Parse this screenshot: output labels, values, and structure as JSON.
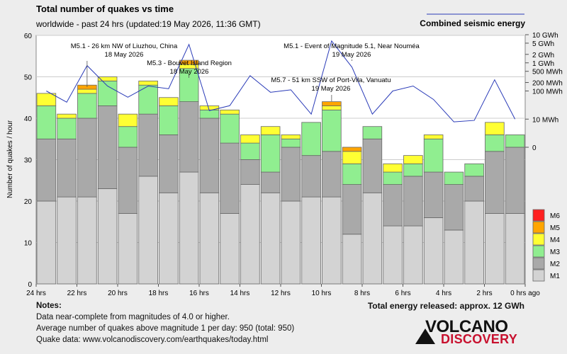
{
  "title": "Total number of quakes vs time",
  "subtitle": "worldwide - past 24 hrs (updated:19 May 2026, 11:36 GMT)",
  "energy_legend_label": "Combined seismic energy",
  "y_axis_label": "Number of quakes / hour",
  "total_energy": "Total energy released: approx. 12 GWh",
  "notes": {
    "title": "Notes:",
    "lines": [
      "Data near-complete from magnitudes of 4.0 or higher.",
      "Average number of quakes above magnitude 1 per day: 950 (total: 950)",
      "Quake data: www.volcanodiscovery.com/earthquakes/today.html"
    ]
  },
  "brand": {
    "line1": "VOLCANO",
    "line2": "DISCOVERY"
  },
  "colors": {
    "M1": "#d3d3d3",
    "M2": "#a9a9a9",
    "M3": "#90ee90",
    "M4": "#ffff33",
    "M5": "#ffa500",
    "M6": "#ff2020",
    "energy_line": "#2a3bb8",
    "background": "#ededed"
  },
  "chart_data": {
    "type": "bar",
    "stacked": true,
    "categories": [
      "24 hrs",
      "23 hrs",
      "22 hrs",
      "21 hrs",
      "20 hrs",
      "19 hrs",
      "18 hrs",
      "17 hrs",
      "16 hrs",
      "15 hrs",
      "14 hrs",
      "13 hrs",
      "12 hrs",
      "11 hrs",
      "10 hrs",
      "9 hrs",
      "8 hrs",
      "7 hrs",
      "6 hrs",
      "5 hrs",
      "4 hrs",
      "3 hrs",
      "2 hrs",
      "1 hrs"
    ],
    "x_tick_labels": [
      "24 hrs",
      "22 hrs",
      "20 hrs",
      "18 hrs",
      "16 hrs",
      "14 hrs",
      "12 hrs",
      "10 hrs",
      "8 hrs",
      "6 hrs",
      "4 hrs",
      "2 hrs",
      "0 hrs ago"
    ],
    "ylabel": "Number of quakes / hour",
    "ylim": [
      0,
      60
    ],
    "y_ticks": [
      0,
      10,
      20,
      30,
      40,
      50,
      60
    ],
    "series": [
      {
        "name": "M1",
        "values": [
          20,
          21,
          21,
          23,
          17,
          26,
          22,
          27,
          22,
          17,
          24,
          22,
          20,
          21,
          21,
          12,
          22,
          14,
          14,
          16,
          13,
          20,
          17,
          17
        ]
      },
      {
        "name": "M2",
        "values": [
          15,
          14,
          19,
          20,
          16,
          15,
          14,
          17,
          18,
          17,
          6,
          5,
          13,
          10,
          11,
          12,
          13,
          10,
          12,
          11,
          11,
          6,
          15,
          16
        ]
      },
      {
        "name": "M3",
        "values": [
          8,
          5,
          6,
          6,
          5,
          7,
          7,
          8,
          2,
          7,
          4,
          9,
          2,
          8,
          10,
          5,
          3,
          3,
          3,
          8,
          3,
          3,
          4,
          3
        ]
      },
      {
        "name": "M4",
        "values": [
          3,
          1,
          1,
          1,
          3,
          1,
          2,
          1,
          1,
          1,
          2,
          2,
          1,
          0,
          1,
          3,
          0,
          2,
          2,
          1,
          0,
          0,
          3,
          0
        ]
      },
      {
        "name": "M5",
        "values": [
          0,
          0,
          1,
          0,
          0,
          0,
          0,
          1,
          0,
          0,
          0,
          0,
          0,
          0,
          1,
          1,
          0,
          0,
          0,
          0,
          0,
          0,
          0,
          0
        ]
      },
      {
        "name": "M6",
        "values": [
          0,
          0,
          0,
          0,
          0,
          0,
          0,
          0,
          0,
          0,
          0,
          0,
          0,
          0,
          0,
          0,
          0,
          0,
          0,
          0,
          0,
          0,
          0,
          0
        ]
      }
    ],
    "legend": [
      "M6",
      "M5",
      "M4",
      "M3",
      "M2",
      "M1"
    ],
    "legend_position": "bottom-right",
    "energy": {
      "name": "Combined seismic energy",
      "axis_ticks": [
        "10 GWh",
        "5 GWh",
        "2 GWh",
        "1 GWh",
        "500 MWh",
        "200 MWh",
        "100 MWh",
        "10 MWh",
        "0"
      ],
      "log_scale": true,
      "unit": "MWh",
      "values": [
        100,
        40,
        800,
        150,
        60,
        150,
        120,
        4500,
        20,
        30,
        350,
        90,
        110,
        15,
        6000,
        700,
        15,
        100,
        150,
        50,
        8,
        9,
        250,
        10
      ]
    },
    "annotations": [
      {
        "text": "M5.1 - 26 km NW of Liuzhou, China",
        "date": "18 May 2026"
      },
      {
        "text": "M5.3 - Bouvet Island Region",
        "date": "18 May 2026"
      },
      {
        "text": "M5.1 - Event of Magnitude 5.1, Near Nouméa",
        "date": "19 May 2026"
      },
      {
        "text": "M5.7 - 51 km SSW of Port-Vila, Vanuatu",
        "date": "19 May 2026"
      }
    ],
    "grid": true
  }
}
